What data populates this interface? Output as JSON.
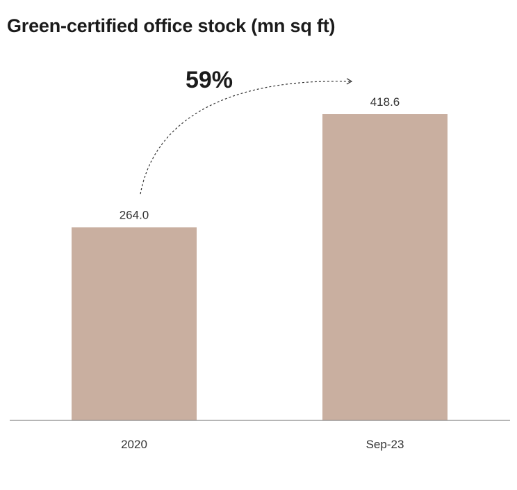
{
  "chart_data": {
    "type": "bar",
    "title": "Green-certified office stock (mn sq ft)",
    "categories": [
      "2020",
      "Sep-23"
    ],
    "values": [
      264.0,
      418.6
    ],
    "value_labels": [
      "264.0",
      "418.6"
    ],
    "annotation": "59%",
    "ylim": [
      0,
      470
    ],
    "grid": false,
    "bar_color": "#c9afa0",
    "axis_color": "#8a8a8a"
  }
}
